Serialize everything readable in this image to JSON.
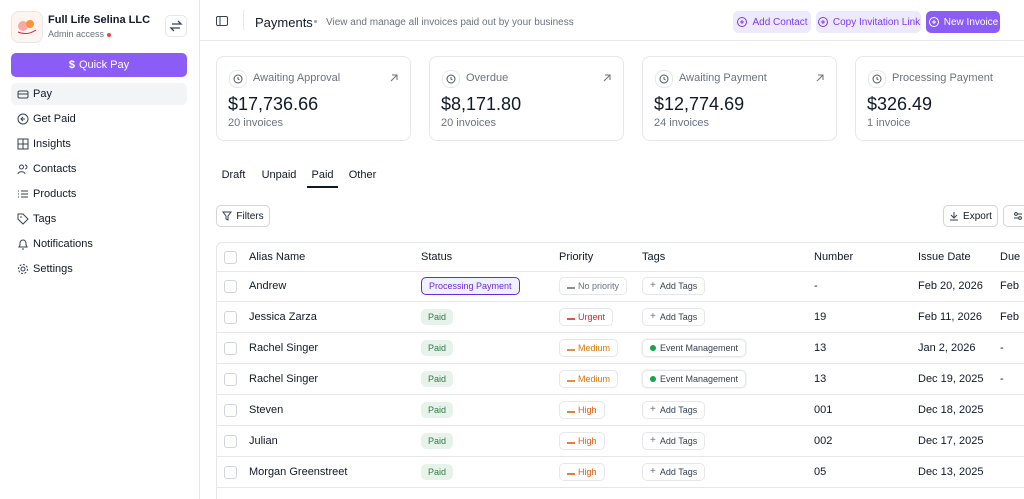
{
  "sidebar": {
    "org_name": "Full Life Selina LLC",
    "access": "Admin access",
    "quick_pay": "Quick Pay",
    "nav": [
      "Pay",
      "Get Paid",
      "Insights",
      "Contacts",
      "Products",
      "Tags",
      "Notifications",
      "Settings"
    ],
    "active_nav": 0
  },
  "header": {
    "title": "Payments",
    "subtitle": "View and manage all invoices paid out by your business",
    "buttons": [
      "Add Contact",
      "Copy Invitation Link",
      "New Invoice"
    ]
  },
  "cards": [
    {
      "label": "Awaiting Approval",
      "amount": "$17,736.66",
      "count": "20 invoices"
    },
    {
      "label": "Overdue",
      "amount": "$8,171.80",
      "count": "20 invoices"
    },
    {
      "label": "Awaiting Payment",
      "amount": "$12,774.69",
      "count": "24 invoices"
    },
    {
      "label": "Processing Payment",
      "amount": "$326.49",
      "count": "1 invoice"
    }
  ],
  "tabs": [
    "Draft",
    "Unpaid",
    "Paid",
    "Other"
  ],
  "active_tab": 2,
  "toolbar": {
    "filters": "Filters",
    "export": "Export"
  },
  "table": {
    "columns": [
      "Alias Name",
      "Status",
      "Priority",
      "Tags",
      "Number",
      "Issue Date",
      "Due"
    ],
    "rows": [
      {
        "alias": "Andrew",
        "status": "Processing Payment",
        "status_color": "#6d28d9",
        "priority": "No priority",
        "priority_color": "#6b7280",
        "tag": "Add Tags",
        "number": "-",
        "issue_date": "Feb 20, 2026",
        "due": "Feb"
      },
      {
        "alias": "Jessica Zarza",
        "status": "Paid",
        "status_color": "#2f7a45",
        "priority": "Urgent",
        "priority_color": "#dc2626",
        "tag": "Add Tags",
        "number": "19",
        "issue_date": "Feb 11, 2026",
        "due": "Feb"
      },
      {
        "alias": "Rachel Singer",
        "status": "Paid",
        "status_color": "#2f7a45",
        "priority": "Medium",
        "priority_color": "#d97706",
        "tag": "Event Management",
        "tag_color": "#16a34a",
        "number": "13",
        "issue_date": "Jan 2, 2026",
        "due": "-"
      },
      {
        "alias": "Rachel Singer",
        "status": "Paid",
        "status_color": "#2f7a45",
        "priority": "Medium",
        "priority_color": "#d97706",
        "tag": "Event Management",
        "tag_color": "#16a34a",
        "number": "13",
        "issue_date": "Dec 19, 2025",
        "due": "-"
      },
      {
        "alias": "Steven",
        "status": "Paid",
        "status_color": "#2f7a45",
        "priority": "High",
        "priority_color": "#ea580c",
        "tag": "Add Tags",
        "number": "001",
        "issue_date": "Dec 18, 2025"
      },
      {
        "alias": "Julian",
        "status": "Paid",
        "status_color": "#2f7a45",
        "priority": "High",
        "priority_color": "#ea580c",
        "tag": "Add Tags",
        "number": "002",
        "issue_date": "Dec 17, 2025"
      },
      {
        "alias": "Morgan Greenstreet",
        "status": "Paid",
        "status_color": "#2f7a45",
        "priority": "High",
        "priority_color": "#ea580c",
        "tag": "Add Tags",
        "number": "05",
        "issue_date": "Dec 13, 2025"
      }
    ]
  }
}
